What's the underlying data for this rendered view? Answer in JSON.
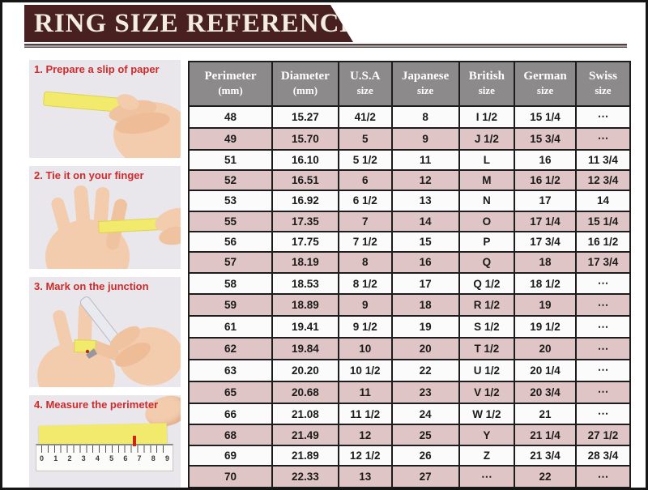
{
  "banner": {
    "title": "RING SIZE REFERENCE"
  },
  "colors": {
    "banner_bg": "#47201f",
    "banner_text": "#f2ece1",
    "header_bg": "#8c8a8a",
    "row_pink": "#dfc5c5",
    "row_white": "#fcfbfb",
    "caption_red": "#cf2b2b",
    "photo_bg": "#e9e7ec",
    "paper_yellow": "#f2ea6d",
    "mark_red": "#d42310",
    "border_black": "#1d1d1d"
  },
  "steps": [
    {
      "caption": "1. Prepare a slip of paper"
    },
    {
      "caption": "2. Tie it on your finger"
    },
    {
      "caption": "3. Mark on the junction"
    },
    {
      "caption": "4. Measure the perimeter",
      "ruler_numbers": [
        "0",
        "1",
        "2",
        "3",
        "4",
        "5",
        "6",
        "7",
        "8",
        "9"
      ]
    }
  ],
  "chart_data": {
    "type": "table",
    "title": "RING SIZE REFERENCE",
    "columns": [
      {
        "label": "Perimeter",
        "sub": "(mm)"
      },
      {
        "label": "Diameter",
        "sub": "(mm)"
      },
      {
        "label": "U.S.A",
        "sub": "size"
      },
      {
        "label": "Japanese",
        "sub": "size"
      },
      {
        "label": "British",
        "sub": "size"
      },
      {
        "label": "German",
        "sub": "size"
      },
      {
        "label": "Swiss",
        "sub": "size"
      }
    ],
    "rows": [
      [
        "48",
        "15.27",
        "41/2",
        "8",
        "I 1/2",
        "15 1/4",
        "⋯"
      ],
      [
        "49",
        "15.70",
        "5",
        "9",
        "J 1/2",
        "15 3/4",
        "⋯"
      ],
      [
        "51",
        "16.10",
        "5 1/2",
        "11",
        "L",
        "16",
        "11 3/4"
      ],
      [
        "52",
        "16.51",
        "6",
        "12",
        "M",
        "16 1/2",
        "12 3/4"
      ],
      [
        "53",
        "16.92",
        "6 1/2",
        "13",
        "N",
        "17",
        "14"
      ],
      [
        "55",
        "17.35",
        "7",
        "14",
        "O",
        "17 1/4",
        "15 1/4"
      ],
      [
        "56",
        "17.75",
        "7 1/2",
        "15",
        "P",
        "17 3/4",
        "16 1/2"
      ],
      [
        "57",
        "18.19",
        "8",
        "16",
        "Q",
        "18",
        "17 3/4"
      ],
      [
        "58",
        "18.53",
        "8 1/2",
        "17",
        "Q 1/2",
        "18 1/2",
        "⋯"
      ],
      [
        "59",
        "18.89",
        "9",
        "18",
        "R 1/2",
        "19",
        "⋯"
      ],
      [
        "61",
        "19.41",
        "9 1/2",
        "19",
        "S 1/2",
        "19 1/2",
        "⋯"
      ],
      [
        "62",
        "19.84",
        "10",
        "20",
        "T 1/2",
        "20",
        "⋯"
      ],
      [
        "63",
        "20.20",
        "10 1/2",
        "22",
        "U 1/2",
        "20 1/4",
        "⋯"
      ],
      [
        "65",
        "20.68",
        "11",
        "23",
        "V 1/2",
        "20 3/4",
        "⋯"
      ],
      [
        "66",
        "21.08",
        "11 1/2",
        "24",
        "W 1/2",
        "21",
        "⋯"
      ],
      [
        "68",
        "21.49",
        "12",
        "25",
        "Y",
        "21 1/4",
        "27 1/2"
      ],
      [
        "69",
        "21.89",
        "12 1/2",
        "26",
        "Z",
        "21 3/4",
        "28 3/4"
      ],
      [
        "70",
        "22.33",
        "13",
        "27",
        "⋯",
        "22",
        "⋯"
      ]
    ]
  }
}
